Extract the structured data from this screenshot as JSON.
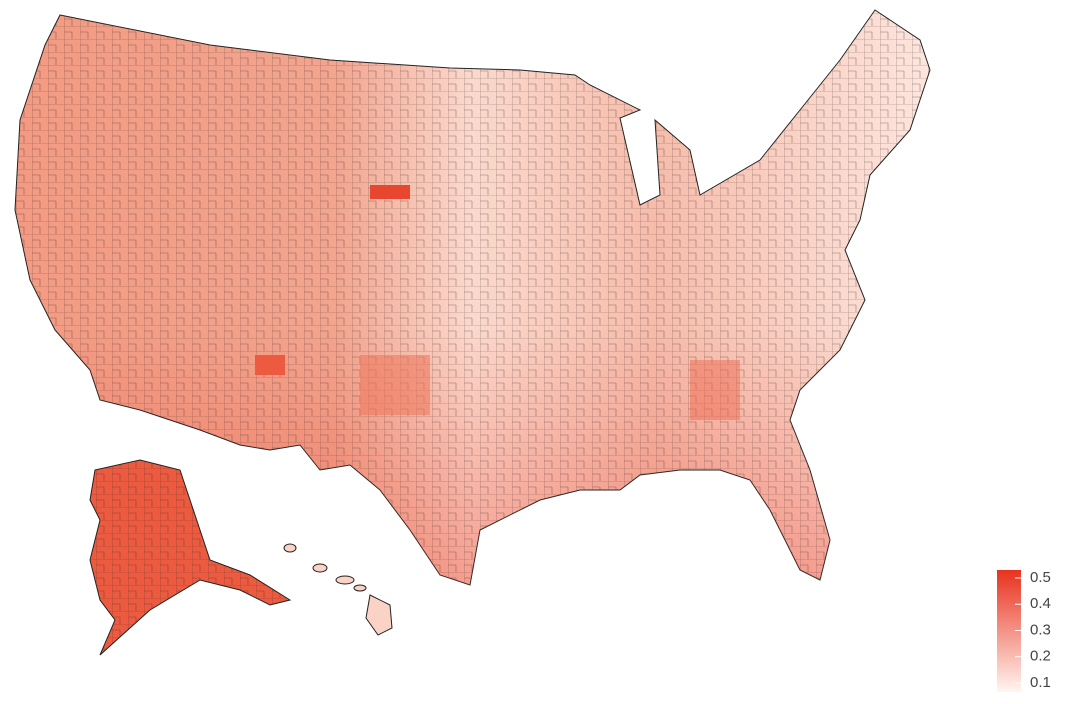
{
  "legend": {
    "ticks": [
      0.5,
      0.4,
      0.3,
      0.2,
      0.1
    ],
    "colors": [
      "#fff5f0",
      "#e8321e"
    ]
  }
}
